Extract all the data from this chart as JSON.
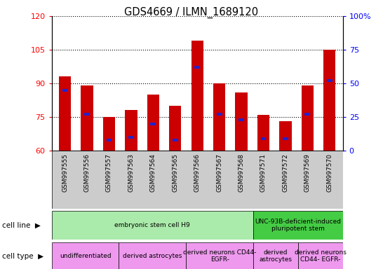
{
  "title": "GDS4669 / ILMN_1689120",
  "samples": [
    "GSM997555",
    "GSM997556",
    "GSM997557",
    "GSM997563",
    "GSM997564",
    "GSM997565",
    "GSM997566",
    "GSM997567",
    "GSM997568",
    "GSM997571",
    "GSM997572",
    "GSM997569",
    "GSM997570"
  ],
  "count_values": [
    93,
    89,
    75,
    78,
    85,
    80,
    109,
    90,
    86,
    76,
    73,
    89,
    105
  ],
  "percentile_values": [
    45,
    27,
    8,
    10,
    20,
    8,
    62,
    27,
    23,
    9,
    9,
    27,
    52
  ],
  "ylim_left": [
    60,
    120
  ],
  "ylim_right": [
    0,
    100
  ],
  "yticks_left": [
    60,
    75,
    90,
    105,
    120
  ],
  "yticks_right": [
    0,
    25,
    50,
    75,
    100
  ],
  "ytick_labels_right": [
    "0",
    "25",
    "50",
    "75",
    "100%"
  ],
  "bar_color": "#cc0000",
  "percentile_color": "#2222cc",
  "bar_bottom": 60,
  "cell_line_groups": [
    {
      "label": "embryonic stem cell H9",
      "start": 0,
      "end": 9,
      "color": "#aaeaaa"
    },
    {
      "label": "UNC-93B-deficient-induced\npluripotent stem",
      "start": 9,
      "end": 13,
      "color": "#44cc44"
    }
  ],
  "cell_type_groups": [
    {
      "label": "undifferentiated",
      "start": 0,
      "end": 3,
      "color": "#ee99ee"
    },
    {
      "label": "derived astrocytes",
      "start": 3,
      "end": 6,
      "color": "#ee99ee"
    },
    {
      "label": "derived neurons CD44-\nEGFR-",
      "start": 6,
      "end": 9,
      "color": "#ee99ee"
    },
    {
      "label": "derived\nastrocytes",
      "start": 9,
      "end": 11,
      "color": "#ee99ee"
    },
    {
      "label": "derived neurons\nCD44- EGFR-",
      "start": 11,
      "end": 13,
      "color": "#ee99ee"
    }
  ],
  "legend_count_color": "#cc0000",
  "legend_percentile_color": "#2222cc",
  "xtick_bg": "#cccccc"
}
